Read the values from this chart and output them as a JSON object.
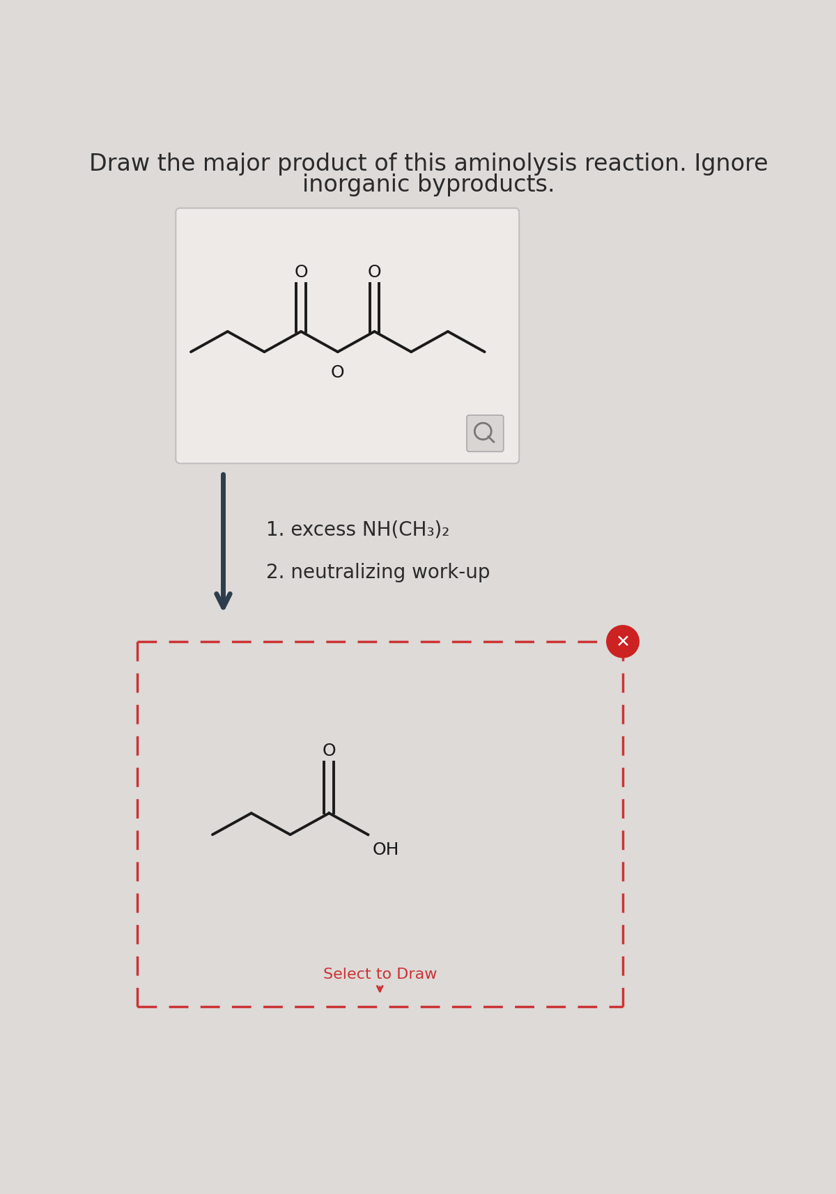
{
  "bg_color": "#dddad8",
  "title_line1": "Draw the major product of this aminolysis reaction. Ignore",
  "title_line2": "inorganic byproducts.",
  "title_fontsize": 24,
  "title_color": "#2a2a2a",
  "cond1": "1. excess NH(CH₃)₂",
  "cond2": "2. neutralizing work-up",
  "cond_fontsize": 20,
  "select_to_draw": "Select to Draw",
  "select_fontsize": 16,
  "select_color": "#cc3333",
  "mol_color": "#1a1a1a",
  "mol_lw": 2.8
}
